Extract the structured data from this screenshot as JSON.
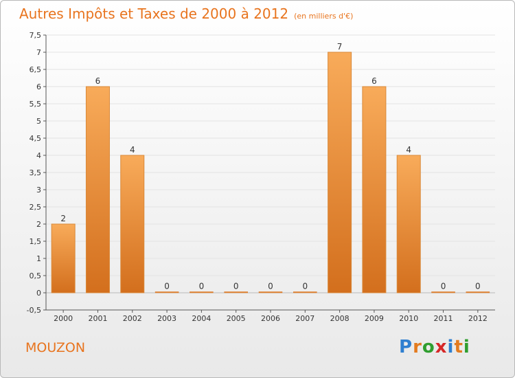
{
  "header": {
    "title": "Autres Impôts et Taxes de 2000 à 2012",
    "unit": "(en milliers d'€)"
  },
  "commune": "MOUZON",
  "logo": {
    "text": "Proxiti",
    "colors": [
      "#2f7fd0",
      "#e37b1f",
      "#2f9e2f",
      "#d62828",
      "#2f7fd0",
      "#e37b1f",
      "#2f9e2f"
    ]
  },
  "colors": {
    "bar_light": "#f8ab5a",
    "bar_dark": "#d36f1d",
    "grid": "#e3e3e3",
    "axis": "#555555"
  },
  "chart_data": {
    "type": "bar",
    "title": "Autres Impôts et Taxes de 2000 à 2012",
    "subtitle": "(en milliers d'€)",
    "categories": [
      "2000",
      "2001",
      "2002",
      "2003",
      "2004",
      "2005",
      "2006",
      "2007",
      "2008",
      "2009",
      "2010",
      "2011",
      "2012"
    ],
    "values": [
      2,
      6,
      4,
      0,
      0,
      0,
      0,
      0,
      7,
      6,
      4,
      0,
      0
    ],
    "data_labels": [
      "2",
      "6",
      "4",
      "0",
      "0",
      "0",
      "0",
      "0",
      "7",
      "6",
      "4",
      "0",
      "0"
    ],
    "ylim": [
      -0.5,
      7.5
    ],
    "yticks": [
      "-0,5",
      "0",
      "0,5",
      "1",
      "1,5",
      "2",
      "2,5",
      "3",
      "3,5",
      "4",
      "4,5",
      "5",
      "5,5",
      "6",
      "6,5",
      "7",
      "7,5"
    ],
    "ytick_values": [
      -0.5,
      0,
      0.5,
      1,
      1.5,
      2,
      2.5,
      3,
      3.5,
      4,
      4.5,
      5,
      5.5,
      6,
      6.5,
      7,
      7.5
    ],
    "grid": true,
    "legend": "none"
  }
}
